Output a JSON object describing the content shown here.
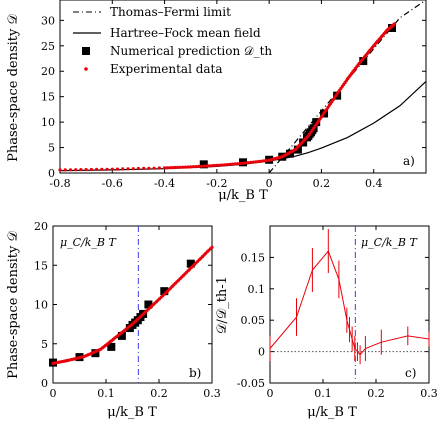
{
  "chart_data": [
    {
      "panel": "a",
      "panel_label": "a)",
      "type": "line",
      "xlabel": "μ/k_B T",
      "ylabel": "Phase-space density 𝒟",
      "xlim": [
        -0.8,
        0.6
      ],
      "ylim": [
        0,
        34
      ],
      "xticks": [
        "-0.8",
        "-0.6",
        "-0.4",
        "-0.2",
        "0",
        "0.2",
        "0.4"
      ],
      "xtick_values": [
        -0.8,
        -0.6,
        -0.4,
        -0.2,
        0,
        0.2,
        0.4
      ],
      "yticks": [
        "0",
        "5",
        "10",
        "15",
        "20",
        "25",
        "30"
      ],
      "ytick_values": [
        0,
        5,
        10,
        15,
        20,
        25,
        30
      ],
      "legend_placement": "top-left",
      "series": [
        {
          "name": "Thomas–Fermi limit",
          "style": "dash-dot",
          "color": "#000000",
          "x": [
            0,
            0.1,
            0.2,
            0.3,
            0.4,
            0.5,
            0.6
          ],
          "y": [
            0,
            6.1,
            12.2,
            18.3,
            24.4,
            30.5,
            36.6
          ]
        },
        {
          "name": "Hartree–Fock mean field",
          "style": "solid",
          "color": "#000000",
          "x": [
            -0.8,
            -0.6,
            -0.4,
            -0.2,
            -0.1,
            0,
            0.05,
            0.1,
            0.15,
            0.2,
            0.3,
            0.4,
            0.5,
            0.6
          ],
          "y": [
            0.45,
            0.6,
            0.85,
            1.3,
            1.7,
            2.35,
            2.8,
            3.3,
            4.0,
            4.9,
            7.0,
            9.8,
            13.2,
            18.0
          ]
        },
        {
          "name": "Numerical prediction 𝒟_th",
          "style": "square-marker",
          "color": "#000000",
          "x": [
            -0.25,
            -0.1,
            0.0,
            0.05,
            0.08,
            0.11,
            0.13,
            0.145,
            0.15,
            0.155,
            0.16,
            0.165,
            0.17,
            0.18,
            0.21,
            0.26,
            0.36,
            0.47
          ],
          "y": [
            1.7,
            2.1,
            2.6,
            3.2,
            3.8,
            4.6,
            6.0,
            7.0,
            7.3,
            7.7,
            8.0,
            8.4,
            8.8,
            10.0,
            11.7,
            15.2,
            22.0,
            28.5
          ]
        },
        {
          "name": "Experimental data",
          "style": "red-dots",
          "color": "#e8000b",
          "x": [
            -0.8,
            -0.6,
            -0.4,
            -0.3,
            -0.2,
            -0.1,
            0.0,
            0.05,
            0.1,
            0.15,
            0.2,
            0.25,
            0.3,
            0.35,
            0.4,
            0.45,
            0.48
          ],
          "y": [
            0.6,
            0.75,
            1.0,
            1.2,
            1.5,
            1.9,
            2.5,
            3.2,
            4.6,
            7.3,
            11.0,
            14.8,
            18.5,
            21.9,
            25.0,
            28.0,
            29.3
          ]
        }
      ]
    },
    {
      "panel": "b",
      "panel_label": "b)",
      "type": "scatter",
      "xlabel": "μ/k_B T",
      "ylabel": "Phase-space density 𝒟",
      "xlim": [
        0,
        0.3
      ],
      "ylim": [
        0,
        20
      ],
      "xticks": [
        "0",
        "0.1",
        "0.2",
        "0.3"
      ],
      "xtick_values": [
        0,
        0.1,
        0.2,
        0.3
      ],
      "yticks": [
        "0",
        "5",
        "10",
        "15",
        "20"
      ],
      "ytick_values": [
        0,
        5,
        10,
        15,
        20
      ],
      "annotation": "μ_C/k_B T",
      "vline_x": 0.161,
      "series": [
        {
          "name": "Numerical prediction 𝒟_th",
          "style": "square-marker",
          "color": "#000000",
          "x": [
            0.0,
            0.05,
            0.08,
            0.11,
            0.13,
            0.145,
            0.15,
            0.155,
            0.16,
            0.165,
            0.17,
            0.18,
            0.21,
            0.26
          ],
          "y": [
            2.6,
            3.3,
            3.8,
            4.6,
            6.0,
            7.0,
            7.4,
            7.7,
            8.0,
            8.4,
            8.8,
            10.0,
            11.7,
            15.2
          ]
        },
        {
          "name": "Experimental data",
          "style": "red-dots",
          "color": "#e8000b",
          "x": [
            0.0,
            0.03,
            0.06,
            0.09,
            0.12,
            0.15,
            0.18,
            0.21,
            0.24,
            0.27,
            0.3
          ],
          "y": [
            2.5,
            2.9,
            3.4,
            4.3,
            5.9,
            7.5,
            9.4,
            11.3,
            13.3,
            15.3,
            17.3
          ]
        }
      ]
    },
    {
      "panel": "c",
      "panel_label": "c)",
      "type": "line",
      "xlabel": "μ/k_B T",
      "ylabel": "𝒟/𝒟_th-1",
      "xlim": [
        0,
        0.3
      ],
      "ylim": [
        -0.05,
        0.2
      ],
      "xticks": [
        "0",
        "0.1",
        "0.2",
        "0.3"
      ],
      "xtick_values": [
        0,
        0.1,
        0.2,
        0.3
      ],
      "yticks": [
        "-0.05",
        "0",
        "0.05",
        "0.1",
        "0.15"
      ],
      "ytick_values": [
        -0.05,
        0,
        0.05,
        0.1,
        0.15
      ],
      "annotation": "μ_C/k_B T",
      "vline_x": 0.161,
      "series": [
        {
          "name": "ratio",
          "style": "line-errorbars",
          "color": "#e8000b",
          "x": [
            0.0,
            0.05,
            0.08,
            0.11,
            0.13,
            0.145,
            0.15,
            0.155,
            0.16,
            0.165,
            0.17,
            0.18,
            0.21,
            0.26,
            0.3
          ],
          "y": [
            0.005,
            0.055,
            0.13,
            0.16,
            0.115,
            0.05,
            0.035,
            0.02,
            0.005,
            0.0,
            -0.005,
            0.005,
            0.015,
            0.025,
            0.02
          ],
          "err": [
            0.02,
            0.03,
            0.035,
            0.035,
            0.03,
            0.02,
            0.02,
            0.02,
            0.02,
            0.015,
            0.015,
            0.02,
            0.02,
            0.015,
            0.012
          ]
        },
        {
          "name": "zero-line",
          "style": "dotted",
          "color": "#555555",
          "x": [
            0,
            0.3
          ],
          "y": [
            0,
            0
          ]
        }
      ]
    }
  ],
  "colors": {
    "experimental": "#e8000b",
    "mu_line": "#3a3af0",
    "axis": "#000000"
  }
}
